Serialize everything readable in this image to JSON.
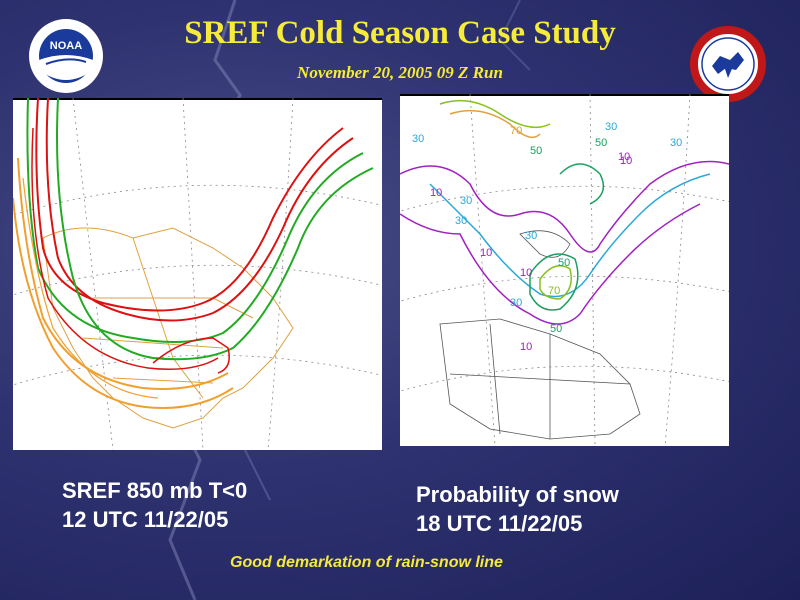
{
  "slide": {
    "title": "SREF Cold Season Case Study",
    "subtitle": "November 20, 2005 09 Z Run",
    "footer": "Good demarkation of rain-snow line"
  },
  "left_panel": {
    "caption_line1": "SREF  850 mb T<0",
    "caption_line2": "12 UTC 11/22/05",
    "line_colors": [
      "#dd1111",
      "#22aa22",
      "#f0a030"
    ]
  },
  "right_panel": {
    "caption_line1": "Probability of  snow",
    "caption_line2": "18 UTC 11/22/05",
    "contour_labels": [
      "30",
      "70",
      "50",
      "30",
      "10",
      "10",
      "30",
      "30",
      "10",
      "10",
      "30",
      "50",
      "30",
      "70",
      "50",
      "10",
      "50",
      "30",
      "10"
    ],
    "contour_colors": [
      "#a020c0",
      "#2aa8d8",
      "#1aa060",
      "#88c020",
      "#e0a040"
    ]
  },
  "logos": {
    "noaa_text": "NOAA",
    "nws_icon": "national-weather-service-logo",
    "noaa_icon": "noaa-logo"
  }
}
